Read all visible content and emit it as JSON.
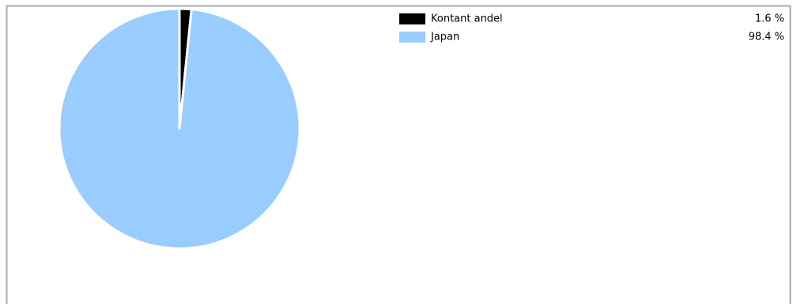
{
  "chart_data": {
    "type": "pie",
    "categories": [
      "Kontant andel",
      "Japan"
    ],
    "values": [
      1.6,
      98.4
    ],
    "value_labels": [
      "1.6 %",
      "98.4 %"
    ],
    "colors": [
      "#000000",
      "#99ccff"
    ]
  }
}
